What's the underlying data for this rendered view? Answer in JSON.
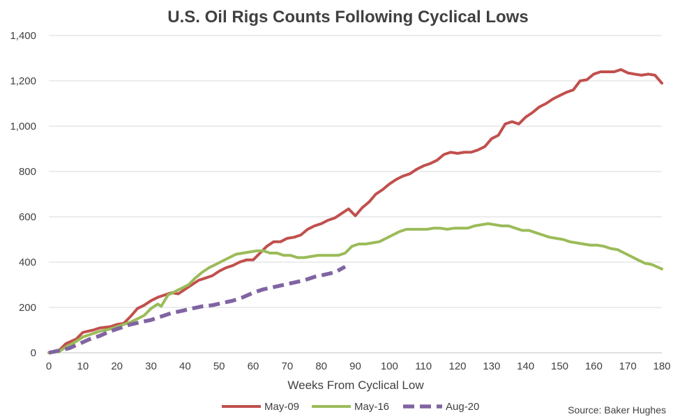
{
  "chart_data": {
    "type": "line",
    "title": "U.S. Oil Rigs Counts Following Cyclical Lows",
    "xlabel": "Weeks From Cyclical Low",
    "ylabel": "",
    "xlim": [
      0,
      180
    ],
    "ylim": [
      0,
      1400
    ],
    "x_ticks": [
      0,
      10,
      20,
      30,
      40,
      50,
      60,
      70,
      80,
      90,
      100,
      110,
      120,
      130,
      140,
      150,
      160,
      170,
      180
    ],
    "y_ticks": [
      0,
      200,
      400,
      600,
      800,
      1000,
      1200,
      1400
    ],
    "y_tick_labels": [
      "0",
      "200",
      "400",
      "600",
      "800",
      "1,000",
      "1,200",
      "1,400"
    ],
    "grid": "horizontal",
    "legend_position": "bottom",
    "source": "Source: Baker Hughes",
    "series": [
      {
        "name": "May-09",
        "color": "#c0504d",
        "style": "solid",
        "x": [
          0,
          3,
          5,
          8,
          10,
          13,
          15,
          18,
          20,
          22,
          24,
          26,
          28,
          30,
          32,
          34,
          36,
          38,
          40,
          42,
          44,
          46,
          48,
          50,
          52,
          54,
          56,
          58,
          60,
          62,
          64,
          66,
          68,
          70,
          72,
          74,
          76,
          78,
          80,
          82,
          84,
          86,
          88,
          90,
          92,
          94,
          96,
          98,
          100,
          102,
          104,
          106,
          108,
          110,
          112,
          114,
          116,
          118,
          120,
          122,
          124,
          126,
          128,
          130,
          132,
          134,
          136,
          138,
          140,
          142,
          144,
          146,
          148,
          150,
          152,
          154,
          156,
          158,
          160,
          162,
          164,
          166,
          168,
          170,
          172,
          174,
          176,
          178,
          180
        ],
        "values": [
          0,
          10,
          40,
          60,
          90,
          100,
          110,
          115,
          125,
          130,
          160,
          195,
          210,
          230,
          245,
          255,
          265,
          260,
          280,
          300,
          320,
          330,
          340,
          360,
          375,
          385,
          400,
          410,
          410,
          440,
          470,
          490,
          490,
          505,
          510,
          520,
          545,
          560,
          570,
          585,
          595,
          615,
          635,
          605,
          640,
          665,
          700,
          720,
          745,
          765,
          780,
          790,
          810,
          825,
          835,
          850,
          875,
          885,
          880,
          885,
          885,
          895,
          910,
          945,
          960,
          1010,
          1020,
          1010,
          1040,
          1060,
          1085,
          1100,
          1120,
          1135,
          1150,
          1160,
          1200,
          1205,
          1230,
          1240,
          1240,
          1240,
          1250,
          1235,
          1230,
          1225,
          1230,
          1225,
          1190
        ]
      },
      {
        "name": "May-16",
        "color": "#9bbb59",
        "style": "solid",
        "x": [
          0,
          3,
          5,
          8,
          10,
          13,
          15,
          18,
          20,
          22,
          24,
          26,
          28,
          30,
          32,
          33,
          35,
          37,
          39,
          41,
          43,
          45,
          47,
          49,
          51,
          53,
          55,
          57,
          59,
          61,
          63,
          65,
          67,
          69,
          71,
          73,
          75,
          77,
          79,
          81,
          83,
          85,
          87,
          89,
          91,
          93,
          95,
          97,
          99,
          101,
          103,
          105,
          107,
          109,
          111,
          113,
          115,
          117,
          119,
          121,
          123,
          125,
          127,
          129,
          131,
          133,
          135,
          137,
          139,
          141,
          143,
          145,
          147,
          149,
          151,
          153,
          155,
          157,
          159,
          161,
          163,
          165,
          167,
          169,
          171,
          173,
          175,
          177,
          180
        ],
        "values": [
          0,
          5,
          25,
          50,
          70,
          85,
          95,
          105,
          115,
          125,
          135,
          150,
          165,
          195,
          215,
          205,
          255,
          270,
          285,
          300,
          330,
          355,
          375,
          390,
          405,
          420,
          435,
          440,
          445,
          450,
          450,
          440,
          440,
          430,
          430,
          420,
          420,
          425,
          430,
          430,
          430,
          430,
          440,
          470,
          480,
          480,
          485,
          490,
          505,
          520,
          535,
          545,
          545,
          545,
          545,
          550,
          550,
          545,
          550,
          550,
          550,
          560,
          565,
          570,
          565,
          560,
          560,
          550,
          540,
          540,
          530,
          520,
          510,
          505,
          500,
          490,
          485,
          480,
          475,
          475,
          470,
          460,
          455,
          440,
          425,
          410,
          395,
          390,
          370
        ]
      },
      {
        "name": "Aug-20",
        "color": "#8064a2",
        "style": "dashed",
        "x": [
          0,
          3,
          6,
          9,
          12,
          15,
          18,
          21,
          24,
          27,
          30,
          33,
          36,
          39,
          42,
          45,
          48,
          51,
          54,
          57,
          60,
          63,
          66,
          69,
          72,
          75,
          78,
          81,
          84,
          87
        ],
        "values": [
          0,
          10,
          20,
          40,
          60,
          75,
          95,
          110,
          125,
          135,
          145,
          160,
          175,
          185,
          195,
          205,
          210,
          220,
          230,
          245,
          265,
          280,
          290,
          300,
          310,
          320,
          335,
          345,
          355,
          380
        ]
      }
    ]
  }
}
